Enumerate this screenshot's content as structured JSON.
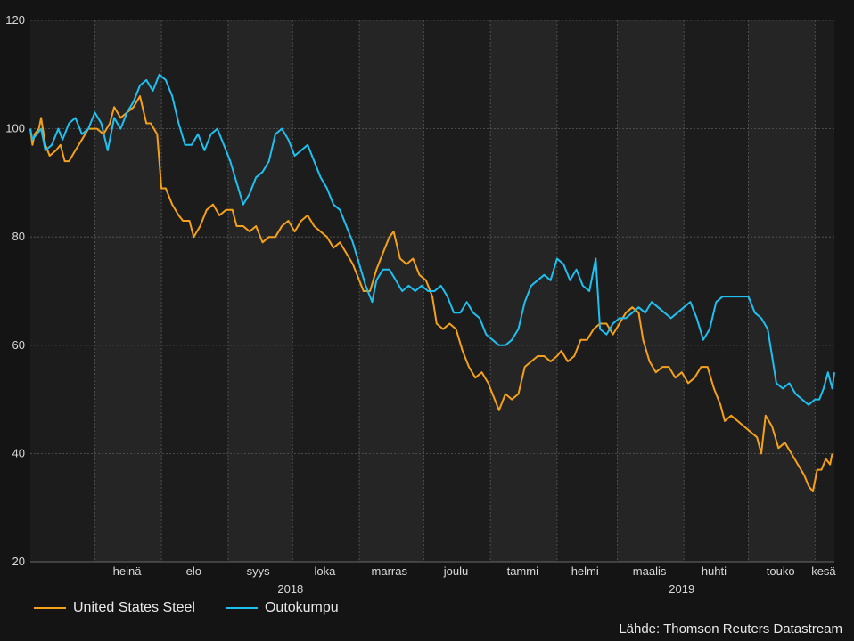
{
  "chart_data": {
    "type": "line",
    "x_scale": "time",
    "y_range": [
      20,
      120
    ],
    "y_ticks": [
      "20",
      "40",
      "60",
      "80",
      "100",
      "120"
    ],
    "x_range": [
      "2018-06-01",
      "2019-06-10"
    ],
    "month_labels": [
      {
        "label": "heinä",
        "date": "2018-07-16"
      },
      {
        "label": "elo",
        "date": "2018-08-16"
      },
      {
        "label": "syys",
        "date": "2018-09-15"
      },
      {
        "label": "loka",
        "date": "2018-10-16"
      },
      {
        "label": "marras",
        "date": "2018-11-15"
      },
      {
        "label": "joulu",
        "date": "2018-12-16"
      },
      {
        "label": "tammi",
        "date": "2019-01-16"
      },
      {
        "label": "helmi",
        "date": "2019-02-14"
      },
      {
        "label": "maalis",
        "date": "2019-03-16"
      },
      {
        "label": "huhti",
        "date": "2019-04-15"
      },
      {
        "label": "touko",
        "date": "2019-05-16"
      },
      {
        "label": "kesä",
        "date": "2019-06-05"
      }
    ],
    "year_labels": [
      {
        "label": "2018",
        "date": "2018-09-30"
      },
      {
        "label": "2019",
        "date": "2019-03-31"
      }
    ],
    "grid": true,
    "legend_position": "bottom-left",
    "series": [
      {
        "name": "United States Steel",
        "color": "#F5A01A",
        "points": [
          [
            "2018-06-01",
            100
          ],
          [
            "2018-06-02",
            97
          ],
          [
            "2018-06-03",
            99
          ],
          [
            "2018-06-05",
            100
          ],
          [
            "2018-06-06",
            102
          ],
          [
            "2018-06-08",
            97
          ],
          [
            "2018-06-10",
            95
          ],
          [
            "2018-06-13",
            96
          ],
          [
            "2018-06-15",
            97
          ],
          [
            "2018-06-17",
            94
          ],
          [
            "2018-06-19",
            94
          ],
          [
            "2018-06-22",
            96
          ],
          [
            "2018-06-25",
            98
          ],
          [
            "2018-06-28",
            100
          ],
          [
            "2018-07-02",
            100
          ],
          [
            "2018-07-05",
            99
          ],
          [
            "2018-07-08",
            101
          ],
          [
            "2018-07-10",
            104
          ],
          [
            "2018-07-13",
            102
          ],
          [
            "2018-07-16",
            103
          ],
          [
            "2018-07-19",
            104
          ],
          [
            "2018-07-22",
            106
          ],
          [
            "2018-07-25",
            101
          ],
          [
            "2018-07-27",
            101
          ],
          [
            "2018-07-30",
            99
          ],
          [
            "2018-08-01",
            89
          ],
          [
            "2018-08-03",
            89
          ],
          [
            "2018-08-06",
            86
          ],
          [
            "2018-08-09",
            84
          ],
          [
            "2018-08-11",
            83
          ],
          [
            "2018-08-14",
            83
          ],
          [
            "2018-08-16",
            80
          ],
          [
            "2018-08-19",
            82
          ],
          [
            "2018-08-22",
            85
          ],
          [
            "2018-08-25",
            86
          ],
          [
            "2018-08-28",
            84
          ],
          [
            "2018-08-31",
            85
          ],
          [
            "2018-09-03",
            85
          ],
          [
            "2018-09-05",
            82
          ],
          [
            "2018-09-08",
            82
          ],
          [
            "2018-09-11",
            81
          ],
          [
            "2018-09-14",
            82
          ],
          [
            "2018-09-17",
            79
          ],
          [
            "2018-09-20",
            80
          ],
          [
            "2018-09-23",
            80
          ],
          [
            "2018-09-26",
            82
          ],
          [
            "2018-09-29",
            83
          ],
          [
            "2018-10-02",
            81
          ],
          [
            "2018-10-05",
            83
          ],
          [
            "2018-10-08",
            84
          ],
          [
            "2018-10-11",
            82
          ],
          [
            "2018-10-14",
            81
          ],
          [
            "2018-10-17",
            80
          ],
          [
            "2018-10-20",
            78
          ],
          [
            "2018-10-23",
            79
          ],
          [
            "2018-10-26",
            77
          ],
          [
            "2018-10-29",
            75
          ],
          [
            "2018-11-01",
            72
          ],
          [
            "2018-11-03",
            70
          ],
          [
            "2018-11-06",
            70
          ],
          [
            "2018-11-09",
            74
          ],
          [
            "2018-11-12",
            77
          ],
          [
            "2018-11-15",
            80
          ],
          [
            "2018-11-17",
            81
          ],
          [
            "2018-11-20",
            76
          ],
          [
            "2018-11-23",
            75
          ],
          [
            "2018-11-26",
            76
          ],
          [
            "2018-11-29",
            73
          ],
          [
            "2018-12-02",
            72
          ],
          [
            "2018-12-05",
            69
          ],
          [
            "2018-12-07",
            64
          ],
          [
            "2018-12-10",
            63
          ],
          [
            "2018-12-13",
            64
          ],
          [
            "2018-12-16",
            63
          ],
          [
            "2018-12-19",
            59
          ],
          [
            "2018-12-22",
            56
          ],
          [
            "2018-12-25",
            54
          ],
          [
            "2018-12-28",
            55
          ],
          [
            "2018-12-31",
            53
          ],
          [
            "2019-01-02",
            51
          ],
          [
            "2019-01-05",
            48
          ],
          [
            "2019-01-08",
            51
          ],
          [
            "2019-01-11",
            50
          ],
          [
            "2019-01-14",
            51
          ],
          [
            "2019-01-17",
            56
          ],
          [
            "2019-01-20",
            57
          ],
          [
            "2019-01-23",
            58
          ],
          [
            "2019-01-26",
            58
          ],
          [
            "2019-01-29",
            57
          ],
          [
            "2019-02-01",
            58
          ],
          [
            "2019-02-03",
            59
          ],
          [
            "2019-02-06",
            57
          ],
          [
            "2019-02-09",
            58
          ],
          [
            "2019-02-12",
            61
          ],
          [
            "2019-02-15",
            61
          ],
          [
            "2019-02-18",
            63
          ],
          [
            "2019-02-21",
            64
          ],
          [
            "2019-02-24",
            64
          ],
          [
            "2019-02-27",
            62
          ],
          [
            "2019-03-02",
            64
          ],
          [
            "2019-03-05",
            66
          ],
          [
            "2019-03-08",
            67
          ],
          [
            "2019-03-11",
            66
          ],
          [
            "2019-03-13",
            61
          ],
          [
            "2019-03-16",
            57
          ],
          [
            "2019-03-19",
            55
          ],
          [
            "2019-03-22",
            56
          ],
          [
            "2019-03-25",
            56
          ],
          [
            "2019-03-28",
            54
          ],
          [
            "2019-03-31",
            55
          ],
          [
            "2019-04-03",
            53
          ],
          [
            "2019-04-06",
            54
          ],
          [
            "2019-04-09",
            56
          ],
          [
            "2019-04-12",
            56
          ],
          [
            "2019-04-15",
            52
          ],
          [
            "2019-04-18",
            49
          ],
          [
            "2019-04-20",
            46
          ],
          [
            "2019-04-23",
            47
          ],
          [
            "2019-04-26",
            46
          ],
          [
            "2019-04-29",
            45
          ],
          [
            "2019-05-02",
            44
          ],
          [
            "2019-05-05",
            43
          ],
          [
            "2019-05-07",
            40
          ],
          [
            "2019-05-09",
            47
          ],
          [
            "2019-05-12",
            45
          ],
          [
            "2019-05-15",
            41
          ],
          [
            "2019-05-18",
            42
          ],
          [
            "2019-05-21",
            40
          ],
          [
            "2019-05-24",
            38
          ],
          [
            "2019-05-27",
            36
          ],
          [
            "2019-05-29",
            34
          ],
          [
            "2019-05-31",
            33
          ],
          [
            "2019-06-02",
            37
          ],
          [
            "2019-06-04",
            37
          ],
          [
            "2019-06-06",
            39
          ],
          [
            "2019-06-08",
            38
          ],
          [
            "2019-06-09",
            40
          ]
        ]
      },
      {
        "name": "Outokumpu",
        "color": "#1EC0F0",
        "points": [
          [
            "2018-06-01",
            100
          ],
          [
            "2018-06-02",
            98
          ],
          [
            "2018-06-04",
            99
          ],
          [
            "2018-06-06",
            100
          ],
          [
            "2018-06-08",
            96
          ],
          [
            "2018-06-11",
            97
          ],
          [
            "2018-06-14",
            100
          ],
          [
            "2018-06-16",
            98
          ],
          [
            "2018-06-19",
            101
          ],
          [
            "2018-06-22",
            102
          ],
          [
            "2018-06-25",
            99
          ],
          [
            "2018-06-28",
            100
          ],
          [
            "2018-07-01",
            103
          ],
          [
            "2018-07-04",
            101
          ],
          [
            "2018-07-07",
            96
          ],
          [
            "2018-07-10",
            102
          ],
          [
            "2018-07-13",
            100
          ],
          [
            "2018-07-16",
            103
          ],
          [
            "2018-07-19",
            105
          ],
          [
            "2018-07-22",
            108
          ],
          [
            "2018-07-25",
            109
          ],
          [
            "2018-07-28",
            107
          ],
          [
            "2018-07-31",
            110
          ],
          [
            "2018-08-03",
            109
          ],
          [
            "2018-08-06",
            106
          ],
          [
            "2018-08-09",
            101
          ],
          [
            "2018-08-12",
            97
          ],
          [
            "2018-08-15",
            97
          ],
          [
            "2018-08-18",
            99
          ],
          [
            "2018-08-21",
            96
          ],
          [
            "2018-08-24",
            99
          ],
          [
            "2018-08-27",
            100
          ],
          [
            "2018-08-30",
            97
          ],
          [
            "2018-09-02",
            94
          ],
          [
            "2018-09-05",
            90
          ],
          [
            "2018-09-08",
            86
          ],
          [
            "2018-09-11",
            88
          ],
          [
            "2018-09-14",
            91
          ],
          [
            "2018-09-17",
            92
          ],
          [
            "2018-09-20",
            94
          ],
          [
            "2018-09-23",
            99
          ],
          [
            "2018-09-26",
            100
          ],
          [
            "2018-09-29",
            98
          ],
          [
            "2018-10-02",
            95
          ],
          [
            "2018-10-05",
            96
          ],
          [
            "2018-10-08",
            97
          ],
          [
            "2018-10-11",
            94
          ],
          [
            "2018-10-14",
            91
          ],
          [
            "2018-10-17",
            89
          ],
          [
            "2018-10-20",
            86
          ],
          [
            "2018-10-23",
            85
          ],
          [
            "2018-10-26",
            82
          ],
          [
            "2018-10-29",
            79
          ],
          [
            "2018-11-01",
            75
          ],
          [
            "2018-11-04",
            71
          ],
          [
            "2018-11-07",
            68
          ],
          [
            "2018-11-09",
            72
          ],
          [
            "2018-11-12",
            74
          ],
          [
            "2018-11-15",
            74
          ],
          [
            "2018-11-18",
            72
          ],
          [
            "2018-11-21",
            70
          ],
          [
            "2018-11-24",
            71
          ],
          [
            "2018-11-27",
            70
          ],
          [
            "2018-11-30",
            71
          ],
          [
            "2018-12-03",
            70
          ],
          [
            "2018-12-06",
            70
          ],
          [
            "2018-12-09",
            71
          ],
          [
            "2018-12-12",
            69
          ],
          [
            "2018-12-15",
            66
          ],
          [
            "2018-12-18",
            66
          ],
          [
            "2018-12-21",
            68
          ],
          [
            "2018-12-24",
            66
          ],
          [
            "2018-12-27",
            65
          ],
          [
            "2018-12-30",
            62
          ],
          [
            "2019-01-02",
            61
          ],
          [
            "2019-01-05",
            60
          ],
          [
            "2019-01-08",
            60
          ],
          [
            "2019-01-11",
            61
          ],
          [
            "2019-01-14",
            63
          ],
          [
            "2019-01-17",
            68
          ],
          [
            "2019-01-20",
            71
          ],
          [
            "2019-01-23",
            72
          ],
          [
            "2019-01-26",
            73
          ],
          [
            "2019-01-29",
            72
          ],
          [
            "2019-02-01",
            76
          ],
          [
            "2019-02-04",
            75
          ],
          [
            "2019-02-07",
            72
          ],
          [
            "2019-02-10",
            74
          ],
          [
            "2019-02-13",
            71
          ],
          [
            "2019-02-16",
            70
          ],
          [
            "2019-02-19",
            76
          ],
          [
            "2019-02-21",
            63
          ],
          [
            "2019-02-24",
            62
          ],
          [
            "2019-02-27",
            64
          ],
          [
            "2019-03-02",
            65
          ],
          [
            "2019-03-05",
            65
          ],
          [
            "2019-03-08",
            66
          ],
          [
            "2019-03-11",
            67
          ],
          [
            "2019-03-14",
            66
          ],
          [
            "2019-03-17",
            68
          ],
          [
            "2019-03-20",
            67
          ],
          [
            "2019-03-23",
            66
          ],
          [
            "2019-03-26",
            65
          ],
          [
            "2019-03-29",
            66
          ],
          [
            "2019-04-01",
            67
          ],
          [
            "2019-04-04",
            68
          ],
          [
            "2019-04-07",
            65
          ],
          [
            "2019-04-10",
            61
          ],
          [
            "2019-04-13",
            63
          ],
          [
            "2019-04-16",
            68
          ],
          [
            "2019-04-19",
            69
          ],
          [
            "2019-04-22",
            69
          ],
          [
            "2019-04-25",
            69
          ],
          [
            "2019-04-28",
            69
          ],
          [
            "2019-05-01",
            69
          ],
          [
            "2019-05-04",
            66
          ],
          [
            "2019-05-07",
            65
          ],
          [
            "2019-05-10",
            63
          ],
          [
            "2019-05-12",
            58
          ],
          [
            "2019-05-14",
            53
          ],
          [
            "2019-05-17",
            52
          ],
          [
            "2019-05-20",
            53
          ],
          [
            "2019-05-23",
            51
          ],
          [
            "2019-05-26",
            50
          ],
          [
            "2019-05-29",
            49
          ],
          [
            "2019-06-01",
            50
          ],
          [
            "2019-06-03",
            50
          ],
          [
            "2019-06-05",
            52
          ],
          [
            "2019-06-07",
            55
          ],
          [
            "2019-06-09",
            52
          ],
          [
            "2019-06-10",
            55
          ]
        ]
      }
    ],
    "source": "Lähde: Thomson Reuters Datastream"
  }
}
